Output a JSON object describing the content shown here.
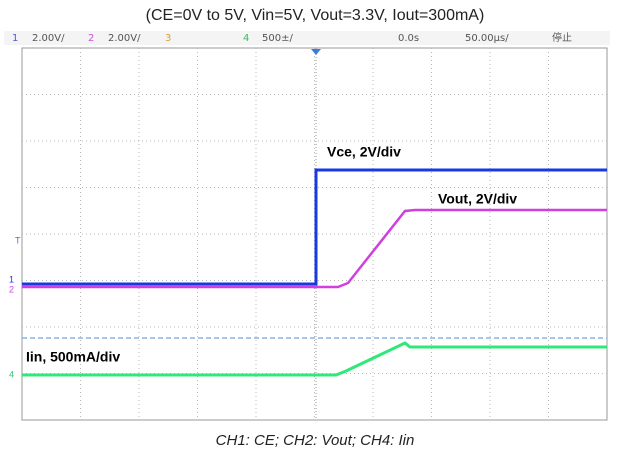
{
  "title": "(CE=0V to 5V, Vin=5V, Vout=3.3V, Iout=300mA)",
  "status_bar": {
    "ch1": "1",
    "ch1_scale": "2.00V/",
    "ch2": "2",
    "ch2_scale": "2.00V/",
    "ch3": "3",
    "ch4": "4",
    "ch4_scale": "500±/",
    "time_offset": "0.0s",
    "time_scale": "50.00μs/",
    "state": "停止"
  },
  "markers": {
    "trigger": "T",
    "ch1": "1",
    "ch2": "2",
    "ch4": "4"
  },
  "trace_labels": {
    "vce": "Vce, 2V/div",
    "vout": "Vout, 2V/div",
    "iin": "Iin, 500mA/div"
  },
  "caption": "CH1: CE; CH2: Vout; CH4: Iin"
}
